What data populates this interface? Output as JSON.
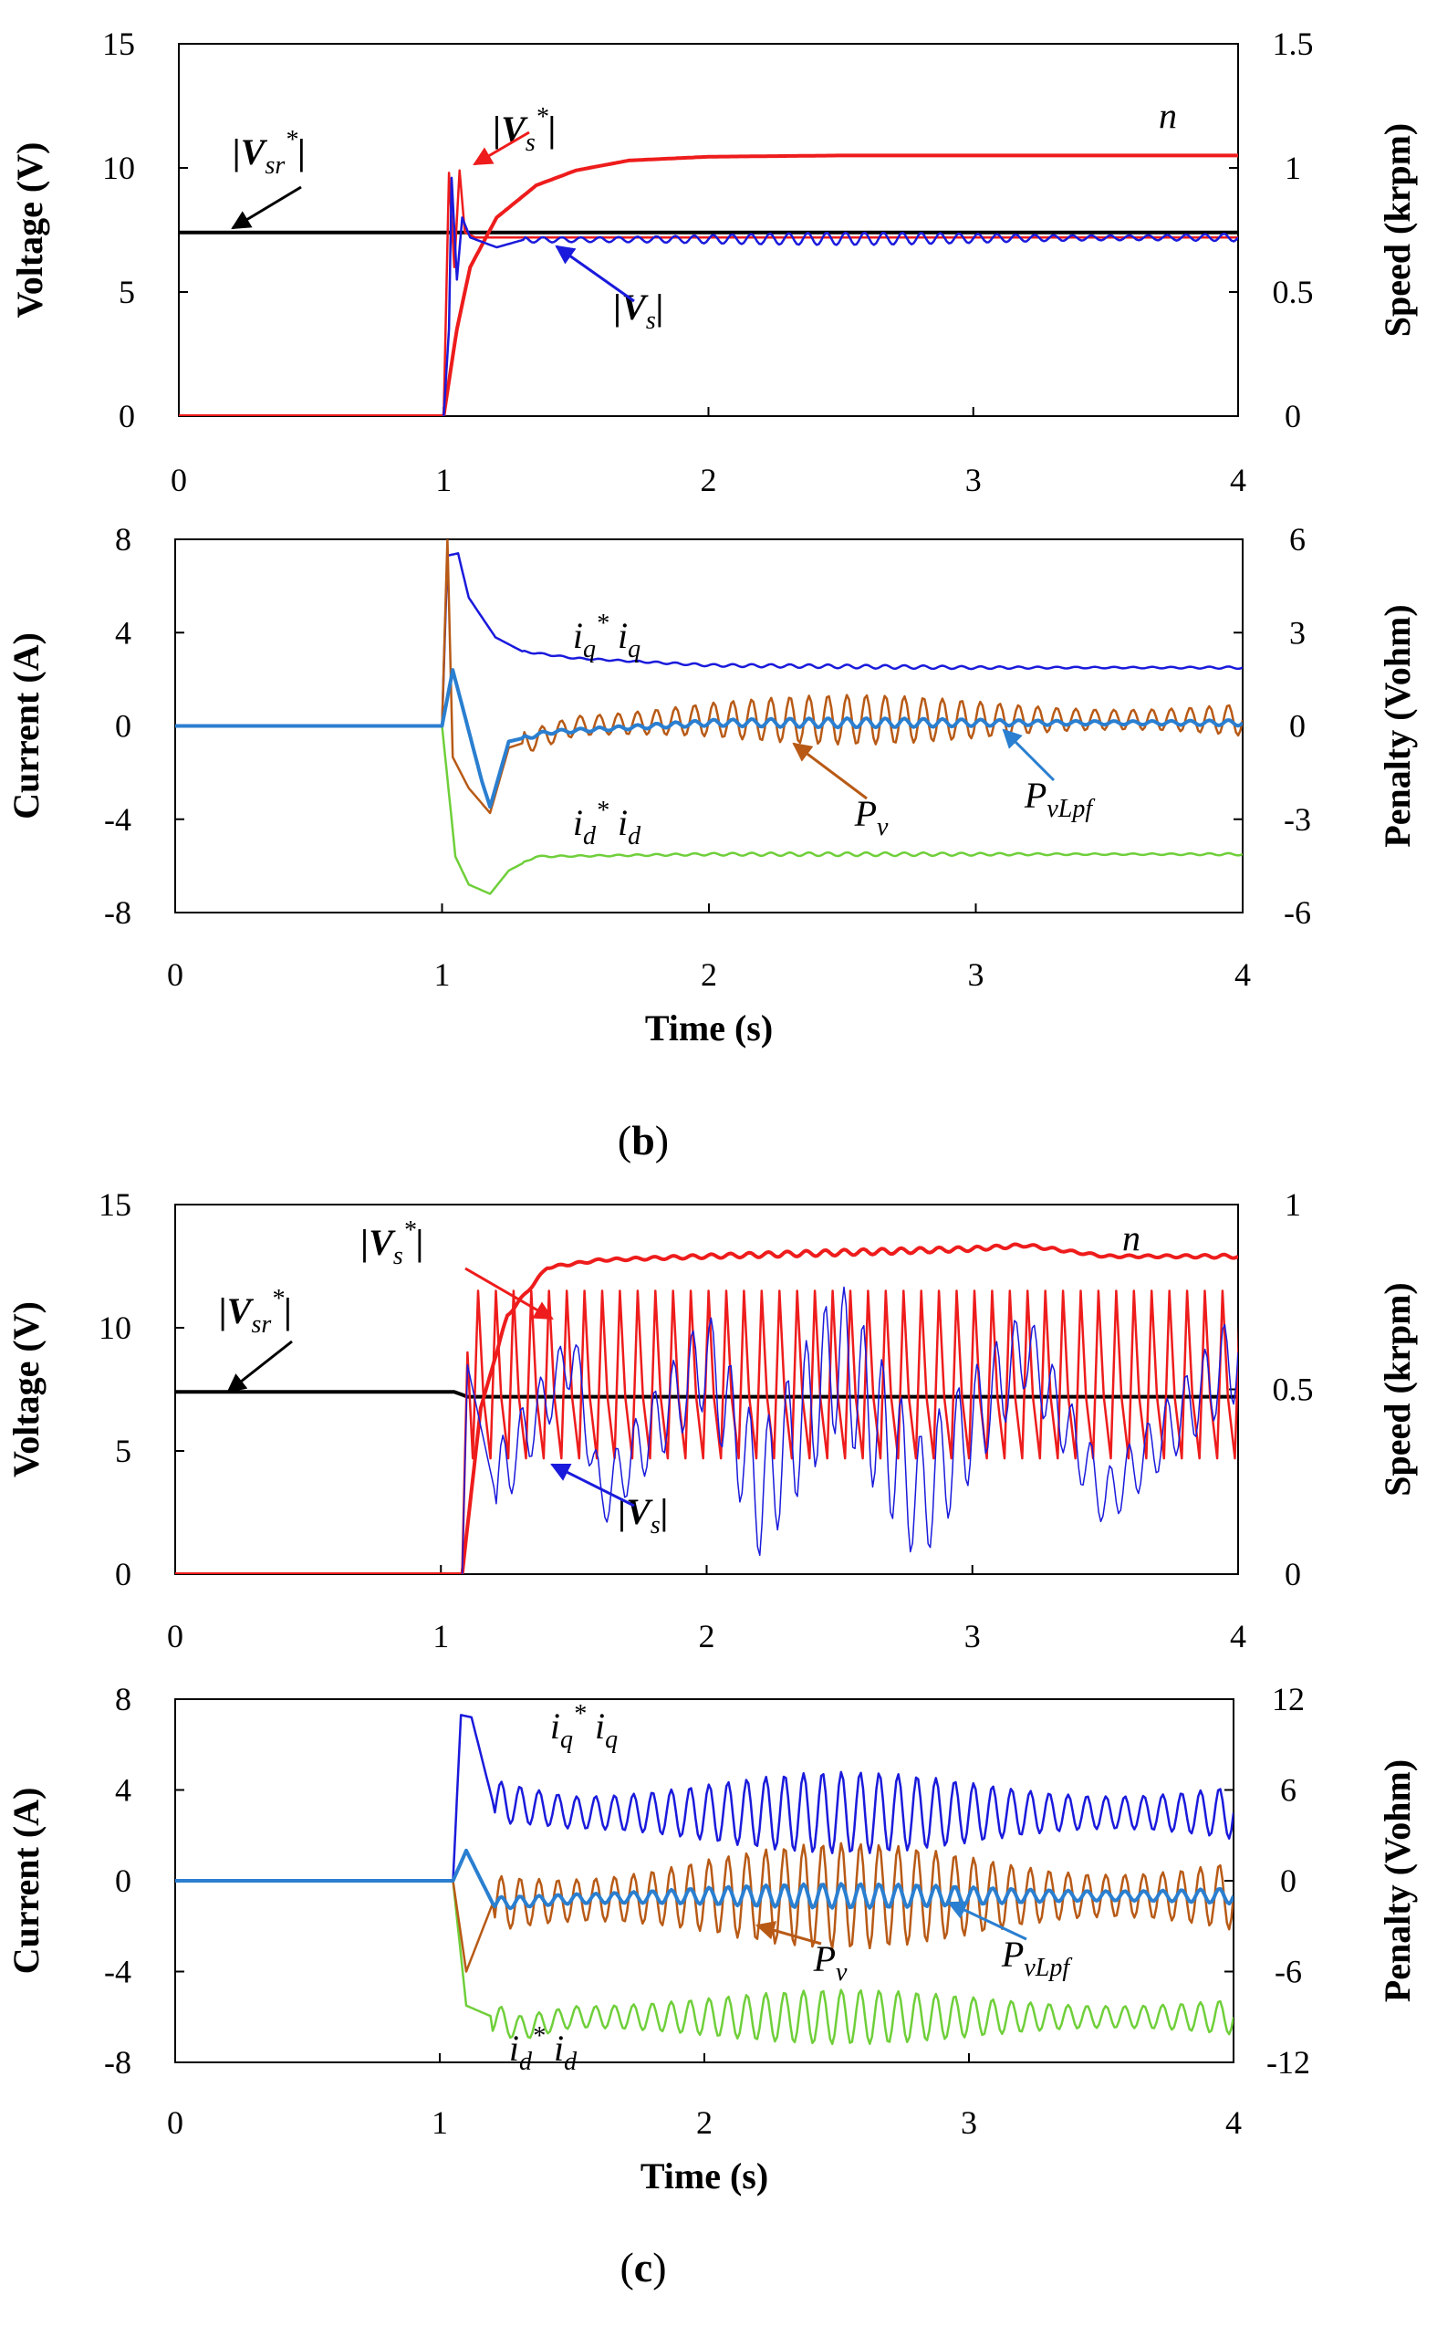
{
  "colors": {
    "black": "#000000",
    "red": "#ee1c1c",
    "blue": "#1a1adc",
    "brown": "#b85a16",
    "lightblue": "#2a7fd0",
    "green": "#6fcf3a"
  },
  "captions": {
    "b": "b",
    "c": "c"
  },
  "chart_data": [
    {
      "id": "b-voltage",
      "type": "line",
      "ylabel": "Voltage (V)",
      "y2label": "Speed (krpm)",
      "xlabel": "",
      "xlim": [
        0,
        4
      ],
      "ylim": [
        0,
        15
      ],
      "y2lim": [
        0,
        1.5
      ],
      "xticks": [
        "0",
        "1",
        "2",
        "3",
        "4"
      ],
      "yticks": [
        "0",
        "5",
        "10",
        "15"
      ],
      "y2ticks": [
        "0",
        "0.5",
        "1",
        "1.5"
      ],
      "series": [
        {
          "name": "|Vsr*|",
          "axis": "y",
          "color": "black",
          "points": [
            [
              0,
              7.4
            ],
            [
              4,
              7.4
            ]
          ]
        },
        {
          "name": "n",
          "axis": "y2",
          "color": "red",
          "points": [
            [
              0,
              0
            ],
            [
              1.0,
              0
            ],
            [
              1.05,
              0.35
            ],
            [
              1.1,
              0.6
            ],
            [
              1.2,
              0.8
            ],
            [
              1.35,
              0.93
            ],
            [
              1.5,
              0.99
            ],
            [
              1.7,
              1.03
            ],
            [
              2.0,
              1.045
            ],
            [
              2.5,
              1.05
            ],
            [
              4,
              1.05
            ]
          ]
        },
        {
          "name": "|Vs*|",
          "axis": "y",
          "color": "red",
          "points": [
            [
              1.0,
              0
            ],
            [
              1.02,
              9.8
            ],
            [
              1.04,
              6.0
            ],
            [
              1.06,
              9.9
            ],
            [
              1.08,
              7.4
            ],
            [
              1.12,
              7.2
            ],
            [
              4,
              7.2
            ]
          ]
        },
        {
          "name": "|Vs|",
          "axis": "y",
          "color": "blue",
          "points": [
            [
              1.0,
              0
            ],
            [
              1.02,
              3.5
            ],
            [
              1.03,
              9.6
            ],
            [
              1.05,
              5.5
            ],
            [
              1.07,
              8.0
            ],
            [
              1.1,
              7.2
            ],
            [
              1.2,
              6.8
            ],
            [
              1.3,
              7.1
            ],
            [
              4,
              7.2
            ]
          ]
        }
      ],
      "annotations": [
        {
          "base": "|V",
          "sub": "sr",
          "sup": "*",
          "close": "|"
        },
        {
          "base": "|V",
          "sub": "s",
          "sup": "*",
          "close": "|"
        },
        {
          "base": "|V",
          "sub": "s",
          "sup": "",
          "close": "|"
        },
        {
          "base": "n",
          "sub": "",
          "sup": "",
          "close": ""
        }
      ]
    },
    {
      "id": "b-current",
      "type": "line",
      "ylabel": "Current (A)",
      "y2label": "Penalty (Vohm)",
      "xlabel": "Time (s)",
      "xlim": [
        0,
        4
      ],
      "ylim": [
        -8,
        8
      ],
      "y2lim": [
        -6,
        6
      ],
      "xticks": [
        "0",
        "1",
        "2",
        "3",
        "4"
      ],
      "yticks": [
        "-8",
        "-4",
        "0",
        "4",
        "8"
      ],
      "y2ticks": [
        "-6",
        "-3",
        "0",
        "3",
        "6"
      ],
      "series": [
        {
          "name": "iq* iq",
          "axis": "y",
          "color": "blue",
          "points": [
            [
              0,
              0
            ],
            [
              1.0,
              0
            ],
            [
              1.02,
              7.3
            ],
            [
              1.06,
              7.4
            ],
            [
              1.1,
              5.5
            ],
            [
              1.2,
              3.8
            ],
            [
              1.3,
              3.2
            ],
            [
              1.5,
              2.9
            ],
            [
              2.0,
              2.6
            ],
            [
              3.0,
              2.5
            ],
            [
              4,
              2.5
            ]
          ]
        },
        {
          "name": "id* id",
          "axis": "y",
          "color": "green",
          "points": [
            [
              0,
              0
            ],
            [
              1.0,
              0
            ],
            [
              1.05,
              -5.6
            ],
            [
              1.1,
              -6.8
            ],
            [
              1.18,
              -7.2
            ],
            [
              1.25,
              -6.2
            ],
            [
              1.35,
              -5.6
            ],
            [
              2.0,
              -5.5
            ],
            [
              4,
              -5.5
            ]
          ]
        },
        {
          "name": "Pv",
          "axis": "y2",
          "color": "brown",
          "points": [
            [
              0,
              0
            ],
            [
              1.0,
              0
            ],
            [
              1.02,
              6.0
            ],
            [
              1.04,
              -1.0
            ],
            [
              1.1,
              -2.0
            ],
            [
              1.18,
              -2.8
            ],
            [
              1.25,
              -0.7
            ],
            [
              1.5,
              0
            ],
            [
              2.0,
              0.2
            ],
            [
              4,
              0.2
            ]
          ]
        },
        {
          "name": "PvLpf",
          "axis": "y2",
          "color": "lightblue",
          "points": [
            [
              0,
              0
            ],
            [
              1.0,
              0
            ],
            [
              1.04,
              1.8
            ],
            [
              1.08,
              0.5
            ],
            [
              1.15,
              -1.8
            ],
            [
              1.18,
              -2.6
            ],
            [
              1.25,
              -0.5
            ],
            [
              1.4,
              -0.2
            ],
            [
              2.0,
              0.1
            ],
            [
              4,
              0.1
            ]
          ]
        }
      ],
      "annotations": [
        {
          "base": "i",
          "sub": "q",
          "sup": "*",
          "tail": " i",
          "tailsub": "q"
        },
        {
          "base": "i",
          "sub": "d",
          "sup": "*",
          "tail": " i",
          "tailsub": "d"
        },
        {
          "base": "P",
          "sub": "v",
          "sup": "",
          "tail": "",
          "tailsub": ""
        },
        {
          "base": "P",
          "sub": "vLpf",
          "sup": "",
          "tail": "",
          "tailsub": ""
        }
      ]
    },
    {
      "id": "c-voltage",
      "type": "line",
      "ylabel": "Voltage (V)",
      "y2label": "Speed (krpm)",
      "xlabel": "",
      "xlim": [
        0,
        4
      ],
      "ylim": [
        0,
        15
      ],
      "y2lim": [
        0,
        1
      ],
      "xticks": [
        "0",
        "1",
        "2",
        "3",
        "4"
      ],
      "yticks": [
        "0",
        "5",
        "10",
        "15"
      ],
      "y2ticks": [
        "0",
        "0.5",
        "1"
      ],
      "series": [
        {
          "name": "|Vsr*|",
          "axis": "y",
          "color": "black",
          "points": [
            [
              0,
              7.4
            ],
            [
              1.05,
              7.4
            ],
            [
              1.1,
              7.2
            ],
            [
              4,
              7.2
            ]
          ]
        },
        {
          "name": "n",
          "axis": "y2",
          "color": "red",
          "points": [
            [
              0,
              0
            ],
            [
              1.08,
              0
            ],
            [
              1.15,
              0.45
            ],
            [
              1.25,
              0.7
            ],
            [
              1.4,
              0.83
            ],
            [
              1.6,
              0.85
            ],
            [
              2.0,
              0.86
            ],
            [
              2.5,
              0.87
            ],
            [
              3.0,
              0.88
            ],
            [
              3.2,
              0.89
            ],
            [
              3.5,
              0.86
            ],
            [
              4,
              0.86
            ]
          ]
        },
        {
          "name": "|Vs*|",
          "axis": "y",
          "color": "red",
          "points": [
            [
              1.08,
              0
            ],
            [
              1.1,
              9.0
            ],
            [
              1.2,
              5.0
            ],
            [
              1.4,
              11.5
            ],
            [
              1.45,
              4.5
            ],
            [
              2.0,
              11.5
            ],
            [
              2.05,
              4.0
            ],
            [
              2.6,
              11.8
            ],
            [
              2.65,
              4.0
            ],
            [
              3.2,
              11.8
            ],
            [
              3.25,
              4.5
            ],
            [
              4,
              11.5
            ]
          ]
        },
        {
          "name": "|Vs|",
          "axis": "y",
          "color": "blue",
          "points": [
            [
              1.08,
              0
            ],
            [
              1.1,
              8.5
            ],
            [
              1.2,
              3.5
            ],
            [
              1.5,
              9.0
            ],
            [
              1.6,
              3.0
            ],
            [
              2.0,
              8.8
            ],
            [
              2.2,
              3.2
            ],
            [
              2.5,
              9.0
            ],
            [
              2.8,
              3.0
            ],
            [
              3.2,
              9.2
            ],
            [
              3.5,
              3.0
            ],
            [
              4,
              9.0
            ]
          ]
        }
      ],
      "annotations": [
        {
          "base": "|V",
          "sub": "sr",
          "sup": "*",
          "close": "|"
        },
        {
          "base": "|V",
          "sub": "s",
          "sup": "*",
          "close": "|"
        },
        {
          "base": "|V",
          "sub": "s",
          "sup": "",
          "close": "|"
        },
        {
          "base": "n",
          "sub": "",
          "sup": "",
          "close": ""
        }
      ]
    },
    {
      "id": "c-current",
      "type": "line",
      "ylabel": "Current (A)",
      "y2label": "Penalty  (Vohm)",
      "xlabel": "Time (s)",
      "xlim": [
        0,
        4
      ],
      "ylim": [
        -8,
        8
      ],
      "y2lim": [
        -12,
        12
      ],
      "xticks": [
        "0",
        "1",
        "2",
        "3",
        "4"
      ],
      "yticks": [
        "-8",
        "-4",
        "0",
        "4",
        "8"
      ],
      "y2ticks": [
        "-12",
        "-6",
        "0",
        "6",
        "12"
      ],
      "series": [
        {
          "name": "iq* iq",
          "axis": "y",
          "color": "blue",
          "points": [
            [
              0,
              0
            ],
            [
              1.05,
              0
            ],
            [
              1.08,
              7.3
            ],
            [
              1.12,
              7.2
            ],
            [
              1.2,
              3.5
            ],
            [
              1.5,
              3.0
            ],
            [
              2.0,
              3.0
            ],
            [
              3.0,
              3.0
            ],
            [
              4,
              3.0
            ]
          ]
        },
        {
          "name": "id* id",
          "axis": "y",
          "color": "green",
          "points": [
            [
              0,
              0
            ],
            [
              1.05,
              0
            ],
            [
              1.1,
              -5.5
            ],
            [
              1.3,
              -6.5
            ],
            [
              1.5,
              -6.0
            ],
            [
              2.0,
              -6.0
            ],
            [
              4,
              -6.0
            ]
          ]
        },
        {
          "name": "Pv",
          "axis": "y2",
          "color": "brown",
          "points": [
            [
              0,
              0
            ],
            [
              1.05,
              0
            ],
            [
              1.1,
              -6.0
            ],
            [
              1.2,
              -1.5
            ],
            [
              2.0,
              -1.0
            ],
            [
              4,
              -1.0
            ]
          ]
        },
        {
          "name": "PvLpf",
          "axis": "y2",
          "color": "lightblue",
          "points": [
            [
              0,
              0
            ],
            [
              1.05,
              0
            ],
            [
              1.1,
              2.0
            ],
            [
              1.2,
              -1.5
            ],
            [
              1.5,
              -1.2
            ],
            [
              2.0,
              -1.0
            ],
            [
              4,
              -1.0
            ]
          ]
        }
      ],
      "annotations": [
        {
          "base": "i",
          "sub": "q",
          "sup": "*",
          "tail": " i",
          "tailsub": "q"
        },
        {
          "base": "i",
          "sub": "d",
          "sup": "*",
          "tail": " i",
          "tailsub": "d"
        },
        {
          "base": "P",
          "sub": "v",
          "sup": "",
          "tail": "",
          "tailsub": ""
        },
        {
          "base": "P",
          "sub": "vLpf",
          "sup": "",
          "tail": "",
          "tailsub": ""
        }
      ]
    }
  ]
}
